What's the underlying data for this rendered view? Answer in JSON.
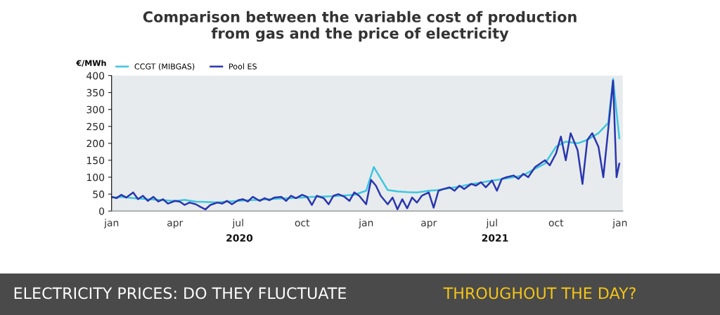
{
  "chart_data": {
    "type": "line",
    "title": "Comparison between the variable cost of production\nfrom gas and the price of electricity",
    "ylabel": "€/MWh",
    "xlim": [
      "2020-01-01",
      "2022-01-05"
    ],
    "xticks": [
      {
        "value": "2020-01-01",
        "label": "jan"
      },
      {
        "value": "2020-04-01",
        "label": "apr"
      },
      {
        "value": "2020-07-01",
        "label": "jul"
      },
      {
        "value": "2020-10-01",
        "label": "oct"
      },
      {
        "value": "2021-01-01",
        "label": "jan"
      },
      {
        "value": "2021-04-01",
        "label": "apr"
      },
      {
        "value": "2021-07-01",
        "label": "jul"
      },
      {
        "value": "2021-10-01",
        "label": "oct"
      },
      {
        "value": "2022-01-01",
        "label": "jan"
      }
    ],
    "ylim": [
      0,
      400
    ],
    "yticks": [
      0,
      50,
      100,
      150,
      200,
      250,
      300,
      350,
      400
    ],
    "grid": false,
    "legend": "top left",
    "line_style": "solid",
    "marker": "none",
    "series": [
      {
        "name": "CCGT (MIBGAS)",
        "color": "#3ec6e0",
        "x": [
          "2020-01-01",
          "2020-01-15",
          "2020-02-01",
          "2020-02-15",
          "2020-03-01",
          "2020-03-15",
          "2020-04-01",
          "2020-04-15",
          "2020-05-01",
          "2020-05-15",
          "2020-06-01",
          "2020-06-15",
          "2020-07-01",
          "2020-07-15",
          "2020-08-01",
          "2020-08-15",
          "2020-09-01",
          "2020-09-15",
          "2020-10-01",
          "2020-10-15",
          "2020-11-01",
          "2020-11-15",
          "2020-12-01",
          "2020-12-15",
          "2021-01-01",
          "2021-01-12",
          "2021-02-01",
          "2021-02-15",
          "2021-03-01",
          "2021-03-15",
          "2021-04-01",
          "2021-04-15",
          "2021-05-01",
          "2021-05-15",
          "2021-06-01",
          "2021-06-15",
          "2021-07-01",
          "2021-07-15",
          "2021-08-01",
          "2021-08-15",
          "2021-09-01",
          "2021-09-15",
          "2021-10-01",
          "2021-10-15",
          "2021-11-01",
          "2021-11-15",
          "2021-12-01",
          "2021-12-15",
          "2021-12-22",
          "2021-12-31"
        ],
        "values": [
          40,
          42,
          38,
          36,
          34,
          32,
          30,
          33,
          28,
          27,
          26,
          28,
          30,
          32,
          33,
          35,
          37,
          38,
          40,
          42,
          43,
          44,
          46,
          48,
          60,
          130,
          62,
          58,
          56,
          55,
          60,
          62,
          68,
          72,
          80,
          84,
          90,
          94,
          100,
          106,
          125,
          140,
          190,
          205,
          200,
          210,
          230,
          260,
          390,
          215
        ]
      },
      {
        "name": "Pool ES",
        "color": "#2a35b0",
        "x": [
          "2020-01-01",
          "2020-01-08",
          "2020-01-15",
          "2020-01-22",
          "2020-02-01",
          "2020-02-08",
          "2020-02-15",
          "2020-02-22",
          "2020-03-01",
          "2020-03-08",
          "2020-03-15",
          "2020-03-22",
          "2020-04-01",
          "2020-04-08",
          "2020-04-15",
          "2020-04-22",
          "2020-05-01",
          "2020-05-08",
          "2020-05-15",
          "2020-05-22",
          "2020-06-01",
          "2020-06-08",
          "2020-06-15",
          "2020-06-22",
          "2020-07-01",
          "2020-07-08",
          "2020-07-15",
          "2020-07-22",
          "2020-08-01",
          "2020-08-08",
          "2020-08-15",
          "2020-08-22",
          "2020-09-01",
          "2020-09-08",
          "2020-09-15",
          "2020-09-22",
          "2020-10-01",
          "2020-10-08",
          "2020-10-15",
          "2020-10-22",
          "2020-11-01",
          "2020-11-08",
          "2020-11-15",
          "2020-11-22",
          "2020-12-01",
          "2020-12-08",
          "2020-12-15",
          "2020-12-22",
          "2021-01-01",
          "2021-01-08",
          "2021-01-15",
          "2021-01-22",
          "2021-02-01",
          "2021-02-08",
          "2021-02-15",
          "2021-02-22",
          "2021-03-01",
          "2021-03-08",
          "2021-03-15",
          "2021-03-22",
          "2021-04-01",
          "2021-04-08",
          "2021-04-15",
          "2021-04-22",
          "2021-05-01",
          "2021-05-08",
          "2021-05-15",
          "2021-05-22",
          "2021-06-01",
          "2021-06-08",
          "2021-06-15",
          "2021-06-22",
          "2021-07-01",
          "2021-07-08",
          "2021-07-15",
          "2021-07-22",
          "2021-08-01",
          "2021-08-08",
          "2021-08-15",
          "2021-08-22",
          "2021-09-01",
          "2021-09-08",
          "2021-09-15",
          "2021-09-22",
          "2021-10-01",
          "2021-10-08",
          "2021-10-15",
          "2021-10-22",
          "2021-11-01",
          "2021-11-08",
          "2021-11-15",
          "2021-11-22",
          "2021-12-01",
          "2021-12-08",
          "2021-12-15",
          "2021-12-22",
          "2021-12-27",
          "2021-12-31"
        ],
        "values": [
          42,
          38,
          48,
          40,
          55,
          35,
          45,
          30,
          42,
          28,
          35,
          22,
          30,
          28,
          18,
          25,
          20,
          12,
          5,
          18,
          25,
          22,
          30,
          20,
          32,
          35,
          28,
          42,
          30,
          38,
          32,
          40,
          42,
          30,
          45,
          38,
          48,
          42,
          18,
          45,
          38,
          20,
          45,
          50,
          42,
          30,
          55,
          45,
          20,
          92,
          75,
          45,
          20,
          40,
          5,
          35,
          8,
          40,
          25,
          45,
          55,
          10,
          60,
          65,
          70,
          60,
          75,
          65,
          80,
          75,
          85,
          70,
          90,
          60,
          95,
          100,
          105,
          95,
          110,
          100,
          130,
          140,
          150,
          135,
          170,
          220,
          150,
          230,
          180,
          80,
          210,
          230,
          190,
          100,
          240,
          385,
          100,
          140
        ]
      }
    ],
    "annotations": [
      "2020",
      "2021",
      "ELECTRICITY PRICES: DO THEY FLUCTUATE",
      "THROUGHOUT THE DAY?"
    ]
  }
}
